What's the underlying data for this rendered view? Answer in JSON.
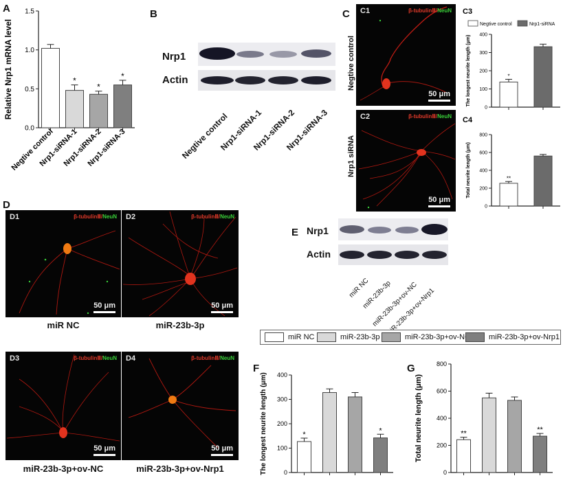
{
  "panels": {
    "A": "A",
    "B": "B",
    "C": "C",
    "D": "D",
    "E": "E",
    "F": "F",
    "G": "G"
  },
  "micro_panels": {
    "C1": {
      "tag": "C1",
      "scale": "50 μm"
    },
    "C2": {
      "tag": "C2",
      "scale": "50 μm"
    },
    "D1": {
      "tag": "D1",
      "scale": "50 μm"
    },
    "D2": {
      "tag": "D2",
      "scale": "50 μm"
    },
    "D3": {
      "tag": "D3",
      "scale": "50 μm"
    },
    "D4": {
      "tag": "D4",
      "scale": "50 μm"
    }
  },
  "stain": {
    "red": "β-tubulinⅢ",
    "sep": "/",
    "green": "NeuN"
  },
  "c_row_labels": {
    "top": "Negtive control",
    "bottom": "Nrp1 siRNA"
  },
  "d_captions": {
    "D1": "miR NC",
    "D2": "miR-23b-3p",
    "D3": "miR-23b-3p+ov-NC",
    "D4": "miR-23b-3p+ov-Nrp1"
  },
  "blot_B": {
    "rows": [
      "Nrp1",
      "Actin"
    ],
    "lanes": [
      "Negtive control",
      "Nrp1-siRNA-1",
      "Nrp1-siRNA-2",
      "Nrp1-siRNA-3"
    ]
  },
  "blot_E": {
    "rows": [
      "Nrp1",
      "Actin"
    ],
    "lanes": [
      "miR NC",
      "miR-23b-3p",
      "miR-23b-3p+ov-NC",
      "miR-23b-3p+ov-Nrp1"
    ]
  },
  "legend_FG": {
    "items": [
      "miR NC",
      "miR-23b-3p",
      "miR-23b-3p+ov-NC",
      "miR-23b-3p+ov-Nrp1"
    ]
  },
  "chart_data": [
    {
      "id": "A",
      "type": "bar",
      "categories": [
        "Negtive control",
        "Nrp1-siRNA-1",
        "Nrp1-siRNA-2",
        "Nrp1-siRNA-3"
      ],
      "values": [
        1.02,
        0.48,
        0.43,
        0.55
      ],
      "errors": [
        0.05,
        0.07,
        0.04,
        0.06
      ],
      "significance": [
        "",
        "*",
        "*",
        "*"
      ],
      "colors": [
        "#ffffff",
        "#d9d9d9",
        "#a6a6a6",
        "#7f7f7f"
      ],
      "ylabel": "Relative Nrp1 mRNA level",
      "ylim": [
        0,
        1.5
      ],
      "yticks": [
        0.0,
        0.5,
        1.0,
        1.5
      ],
      "yticklabels": [
        "0.0",
        "0.5",
        "1.0",
        "1.5"
      ]
    },
    {
      "id": "C3",
      "type": "bar",
      "title": "C3",
      "categories": [
        "Negtive control",
        "Nrp1-siRNA"
      ],
      "values": [
        138,
        332
      ],
      "errors": [
        15,
        14
      ],
      "significance": [
        "*",
        ""
      ],
      "colors": [
        "#ffffff",
        "#6b6b6b"
      ],
      "ylabel": "The longest neurite length (μm)",
      "ylim": [
        0,
        400
      ],
      "yticks": [
        0,
        100,
        200,
        300,
        400
      ],
      "yticklabels": [
        "0",
        "100",
        "200",
        "300",
        "400"
      ],
      "legend": [
        "Negtive control",
        "Nrp1-siRNA"
      ]
    },
    {
      "id": "C4",
      "type": "bar",
      "title": "C4",
      "categories": [
        "Negtive control",
        "Nrp1-siRNA"
      ],
      "values": [
        255,
        560
      ],
      "errors": [
        20,
        18
      ],
      "significance": [
        "**",
        ""
      ],
      "colors": [
        "#ffffff",
        "#6b6b6b"
      ],
      "ylabel": "Total neurite length (μm)",
      "ylim": [
        0,
        800
      ],
      "yticks": [
        0,
        200,
        400,
        600,
        800
      ],
      "yticklabels": [
        "0",
        "200",
        "400",
        "600",
        "800"
      ]
    },
    {
      "id": "F",
      "type": "bar",
      "categories": [
        "miR NC",
        "miR-23b-3p",
        "miR-23b-3p+ov-NC",
        "miR-23b-3p+ov-Nrp1"
      ],
      "values": [
        127,
        328,
        310,
        142
      ],
      "errors": [
        14,
        15,
        18,
        15
      ],
      "significance": [
        "*",
        "",
        "",
        "*"
      ],
      "colors": [
        "#ffffff",
        "#d9d9d9",
        "#a6a6a6",
        "#7f7f7f"
      ],
      "ylabel": "The longest  neurite length (μm)",
      "ylim": [
        0,
        400
      ],
      "yticks": [
        0,
        100,
        200,
        300,
        400
      ],
      "yticklabels": [
        "0",
        "100",
        "200",
        "300",
        "400"
      ]
    },
    {
      "id": "G",
      "type": "bar",
      "categories": [
        "miR NC",
        "miR-23b-3p",
        "miR-23b-3p+ov-NC",
        "miR-23b-3p+ov-Nrp1"
      ],
      "values": [
        242,
        550,
        532,
        268
      ],
      "errors": [
        18,
        35,
        25,
        20
      ],
      "significance": [
        "**",
        "",
        "",
        "**"
      ],
      "colors": [
        "#ffffff",
        "#d9d9d9",
        "#a6a6a6",
        "#7f7f7f"
      ],
      "ylabel": "Total neurite length (μm)",
      "ylim": [
        0,
        800
      ],
      "yticks": [
        0,
        200,
        400,
        600,
        800
      ],
      "yticklabels": [
        "0",
        "200",
        "400",
        "600",
        "800"
      ]
    }
  ]
}
